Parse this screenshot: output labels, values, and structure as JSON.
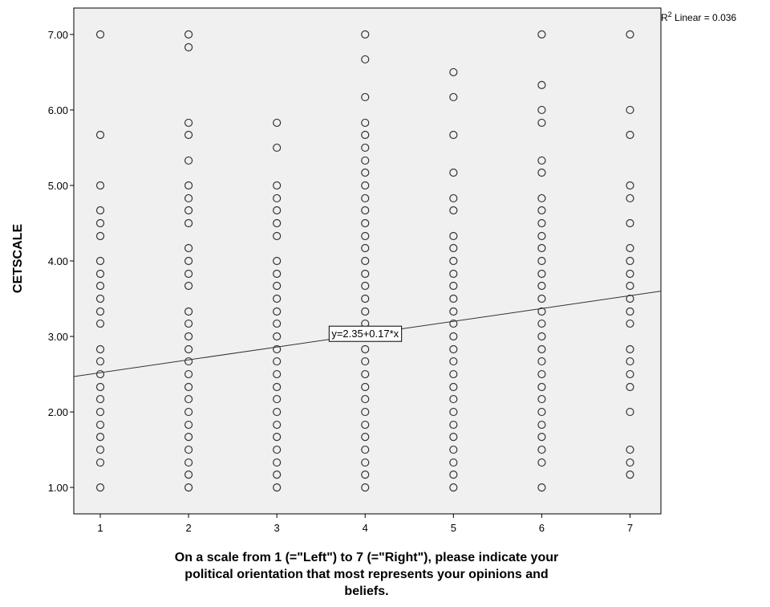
{
  "chart_data": {
    "type": "scatter",
    "xlabel_lines": [
      "On a scale from 1 (=\"Left\") to 7 (=\"Right\"), please indicate your",
      "political orientation that most represents your opinions and",
      "beliefs."
    ],
    "ylabel": "CETSCALE",
    "xlim": [
      0.7,
      7.35
    ],
    "ylim": [
      0.65,
      7.35
    ],
    "x_ticks": [
      1,
      2,
      3,
      4,
      5,
      6,
      7
    ],
    "x_tick_labels": [
      "1",
      "2",
      "3",
      "4",
      "5",
      "6",
      "7"
    ],
    "y_ticks": [
      1,
      2,
      3,
      4,
      5,
      6,
      7
    ],
    "y_tick_labels": [
      "1.00",
      "2.00",
      "3.00",
      "4.00",
      "5.00",
      "6.00",
      "7.00"
    ],
    "grid": false,
    "fit_line": {
      "intercept": 2.35,
      "slope": 0.17,
      "label": "y=2.35+0.17*x",
      "label_x": 4.0
    },
    "r2_label": {
      "prefix": "R",
      "superscript": "2",
      "suffix": " Linear = 0.036"
    },
    "points": [
      {
        "x": 1,
        "y": [
          7.0,
          5.67,
          5.0,
          4.67,
          4.5,
          4.33,
          4.0,
          3.83,
          3.67,
          3.5,
          3.33,
          3.17,
          2.83,
          2.67,
          2.5,
          2.33,
          2.17,
          2.0,
          1.83,
          1.67,
          1.5,
          1.33,
          1.0
        ]
      },
      {
        "x": 2,
        "y": [
          7.0,
          6.83,
          5.83,
          5.67,
          5.33,
          5.0,
          4.83,
          4.67,
          4.5,
          4.17,
          4.0,
          3.83,
          3.67,
          3.33,
          3.17,
          3.0,
          2.83,
          2.67,
          2.5,
          2.33,
          2.17,
          2.0,
          1.83,
          1.67,
          1.5,
          1.33,
          1.17,
          1.0
        ]
      },
      {
        "x": 3,
        "y": [
          5.83,
          5.5,
          5.0,
          4.83,
          4.67,
          4.5,
          4.33,
          4.0,
          3.83,
          3.67,
          3.5,
          3.33,
          3.17,
          3.0,
          2.83,
          2.67,
          2.5,
          2.33,
          2.17,
          2.0,
          1.83,
          1.67,
          1.5,
          1.33,
          1.17,
          1.0
        ]
      },
      {
        "x": 4,
        "y": [
          7.0,
          6.67,
          6.17,
          5.83,
          5.67,
          5.5,
          5.33,
          5.17,
          5.0,
          4.83,
          4.67,
          4.5,
          4.33,
          4.17,
          4.0,
          3.83,
          3.67,
          3.5,
          3.33,
          3.17,
          3.0,
          2.83,
          2.67,
          2.5,
          2.33,
          2.17,
          2.0,
          1.83,
          1.67,
          1.5,
          1.33,
          1.17,
          1.0
        ]
      },
      {
        "x": 5,
        "y": [
          6.5,
          6.17,
          5.67,
          5.17,
          4.83,
          4.67,
          4.33,
          4.17,
          4.0,
          3.83,
          3.67,
          3.5,
          3.33,
          3.17,
          3.0,
          2.83,
          2.67,
          2.5,
          2.33,
          2.17,
          2.0,
          1.83,
          1.67,
          1.5,
          1.33,
          1.17,
          1.0
        ]
      },
      {
        "x": 6,
        "y": [
          7.0,
          6.33,
          6.0,
          5.83,
          5.33,
          5.17,
          4.83,
          4.67,
          4.5,
          4.33,
          4.17,
          4.0,
          3.83,
          3.67,
          3.5,
          3.33,
          3.17,
          3.0,
          2.83,
          2.67,
          2.5,
          2.33,
          2.17,
          2.0,
          1.83,
          1.67,
          1.5,
          1.33,
          1.0
        ]
      },
      {
        "x": 7,
        "y": [
          7.0,
          6.0,
          5.67,
          5.0,
          4.83,
          4.5,
          4.17,
          4.0,
          3.83,
          3.67,
          3.5,
          3.33,
          3.17,
          2.83,
          2.67,
          2.5,
          2.33,
          2.0,
          1.5,
          1.33,
          1.17
        ]
      }
    ]
  }
}
